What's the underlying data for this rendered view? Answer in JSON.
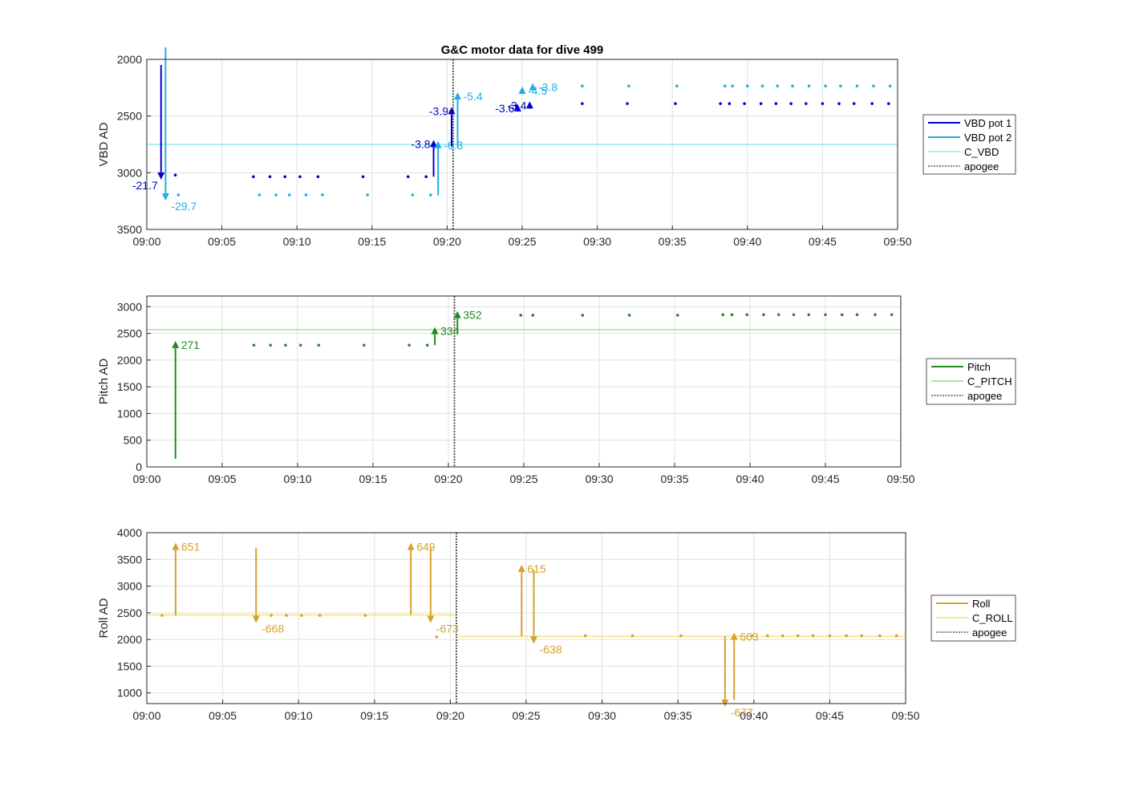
{
  "figure": {
    "title": "G&C motor data for dive 499"
  },
  "colors": {
    "vbd1": "#0000CD",
    "vbd2": "#1EAEE4",
    "c_vbd": "#7FE3E8",
    "pitch": "#228B22",
    "c_pitch": "#7CDE7C",
    "roll": "#D6A22A",
    "c_roll": "#F0E060",
    "apogee": "#555555",
    "grid": "#E0E0E0",
    "axis": "#262626"
  },
  "chart_data": [
    {
      "type": "line",
      "ylabel": "VBD AD",
      "y_reversed": true,
      "ylim": [
        2000,
        3500
      ],
      "yticks": [
        2000,
        2500,
        3000,
        3500
      ],
      "xlim_minutes": [
        0,
        50
      ],
      "x_tick_labels": [
        "09:00",
        "09:05",
        "09:10",
        "09:15",
        "09:20",
        "09:25",
        "09:30",
        "09:35",
        "09:40",
        "09:45",
        "09:50"
      ],
      "grid": true,
      "legend_position": "outside-right",
      "legend": [
        "VBD pot 1",
        "VBD pot 2",
        "C_VBD",
        "apogee"
      ],
      "reference_lines": [
        {
          "name": "C_VBD",
          "y": 2750
        }
      ],
      "apogee_x": 20.4,
      "series": [
        {
          "name": "VBD pot 1",
          "points_x": [
            1.9,
            7.1,
            8.2,
            9.2,
            10.2,
            11.4,
            14.4,
            17.4,
            18.6,
            24.6,
            29.0,
            32.0,
            35.2,
            38.2,
            38.8,
            39.8,
            40.9,
            41.9,
            42.9,
            43.9,
            45.0,
            46.1,
            47.1,
            48.3,
            49.4
          ],
          "points_y": [
            3020,
            3035,
            3035,
            3035,
            3035,
            3035,
            3035,
            3035,
            3035,
            2410,
            2390,
            2390,
            2390,
            2390,
            2390,
            2390,
            2390,
            2390,
            2390,
            2390,
            2390,
            2390,
            2390,
            2390,
            2390
          ]
        },
        {
          "name": "VBD pot 2",
          "points_x": [
            2.1,
            7.5,
            8.6,
            9.5,
            10.6,
            11.7,
            14.7,
            17.7,
            18.9,
            29.0,
            32.1,
            35.3,
            38.5,
            39.0,
            40.0,
            41.0,
            42.0,
            43.0,
            44.1,
            45.2,
            46.2,
            47.3,
            48.4,
            49.5
          ],
          "points_y": [
            3195,
            3195,
            3195,
            3195,
            3195,
            3195,
            3195,
            3195,
            3195,
            2235,
            2235,
            2235,
            2235,
            2235,
            2235,
            2235,
            2235,
            2235,
            2235,
            2235,
            2235,
            2235,
            2235,
            2235
          ]
        }
      ],
      "arrows": [
        {
          "series": "VBD pot 1",
          "x": 0.95,
          "y0": 2050,
          "y1": 3060,
          "label": "-21.7",
          "label_side": "left"
        },
        {
          "series": "VBD pot 2",
          "x": 1.25,
          "y0": 1880,
          "y1": 3245,
          "label": "-29.7",
          "label_side": "right"
        },
        {
          "series": "VBD pot 1",
          "x": 19.1,
          "y0": 3035,
          "y1": 2710,
          "label": "-3.8",
          "label_side": "left"
        },
        {
          "series": "VBD pot 2",
          "x": 19.4,
          "y0": 3200,
          "y1": 2720,
          "label": "-6.3",
          "label_side": "right"
        },
        {
          "series": "VBD pot 1",
          "x": 20.3,
          "y0": 2770,
          "y1": 2420,
          "label": "-3.9",
          "label_side": "left"
        },
        {
          "series": "VBD pot 2",
          "x": 20.7,
          "y0": 2780,
          "y1": 2290,
          "label": "-5.4",
          "label_side": "right"
        },
        {
          "series": "VBD pot 1",
          "x": 24.7,
          "y0": 2450,
          "y1": 2395,
          "label": "-3.6",
          "label_side": "left"
        },
        {
          "series": "VBD pot 1",
          "x": 25.5,
          "y0": 2430,
          "y1": 2370,
          "label": "-3.4",
          "label_side": "left"
        },
        {
          "series": "VBD pot 2",
          "x": 25.0,
          "y0": 2300,
          "y1": 2240,
          "label": "-4.5",
          "label_side": "right"
        },
        {
          "series": "VBD pot 2",
          "x": 25.7,
          "y0": 2260,
          "y1": 2210,
          "label": "-3.8",
          "label_side": "right"
        }
      ]
    },
    {
      "type": "line",
      "ylabel": "Pitch AD",
      "y_reversed": false,
      "ylim": [
        0,
        3200
      ],
      "yticks": [
        0,
        500,
        1000,
        1500,
        2000,
        2500,
        3000
      ],
      "xlim_minutes": [
        0,
        50
      ],
      "x_tick_labels": [
        "09:00",
        "09:05",
        "09:10",
        "09:15",
        "09:20",
        "09:25",
        "09:30",
        "09:35",
        "09:40",
        "09:45",
        "09:50"
      ],
      "grid": true,
      "legend_position": "outside-right",
      "legend": [
        "Pitch",
        "C_PITCH",
        "apogee"
      ],
      "reference_lines": [
        {
          "name": "C_PITCH",
          "y": 2570
        }
      ],
      "apogee_x": 20.4,
      "series": [
        {
          "name": "Pitch",
          "points_x": [
            7.1,
            8.2,
            9.2,
            10.2,
            11.4,
            14.4,
            17.4,
            18.6,
            24.8,
            25.6,
            28.9,
            32.0,
            35.2,
            38.2,
            38.8,
            39.8,
            40.9,
            41.9,
            42.9,
            43.9,
            45.0,
            46.1,
            47.1,
            48.3,
            49.4
          ],
          "points_y": [
            2280,
            2280,
            2280,
            2280,
            2280,
            2280,
            2280,
            2280,
            2840,
            2840,
            2840,
            2840,
            2840,
            2850,
            2850,
            2850,
            2850,
            2850,
            2850,
            2850,
            2850,
            2850,
            2850,
            2850,
            2850
          ]
        }
      ],
      "arrows": [
        {
          "series": "Pitch",
          "x": 1.9,
          "y0": 150,
          "y1": 2360,
          "label": "271",
          "label_side": "right"
        },
        {
          "series": "Pitch",
          "x": 19.1,
          "y0": 2280,
          "y1": 2620,
          "label": "334",
          "label_side": "right"
        },
        {
          "series": "Pitch",
          "x": 20.6,
          "y0": 2510,
          "y1": 2920,
          "label": "352",
          "label_side": "right"
        }
      ]
    },
    {
      "type": "line",
      "ylabel": "Roll AD",
      "y_reversed": false,
      "ylim": [
        800,
        4000
      ],
      "yticks": [
        1000,
        1500,
        2000,
        2500,
        3000,
        3500,
        4000
      ],
      "xlim_minutes": [
        0,
        50
      ],
      "x_tick_labels": [
        "09:00",
        "09:05",
        "09:10",
        "09:15",
        "09:20",
        "09:25",
        "09:30",
        "09:35",
        "09:40",
        "09:45",
        "09:50"
      ],
      "grid": true,
      "legend_position": "outside-right",
      "legend": [
        "Roll",
        "C_ROLL",
        "apogee"
      ],
      "reference_lines": [
        {
          "name": "C_ROLL",
          "x0": 0,
          "x1": 20.4,
          "y": 2460
        },
        {
          "name": "C_ROLL",
          "x0": 20.4,
          "x1": 50,
          "y": 2060
        }
      ],
      "apogee_x": 20.4,
      "series": [
        {
          "name": "Roll",
          "points_x": [
            1.0,
            8.2,
            9.2,
            10.2,
            11.4,
            14.4,
            19.1,
            28.9,
            32.0,
            35.2,
            39.9,
            40.9,
            41.9,
            42.9,
            43.9,
            45.0,
            46.1,
            47.1,
            48.3,
            49.4
          ],
          "points_y": [
            2450,
            2450,
            2450,
            2450,
            2450,
            2450,
            2050,
            2070,
            2070,
            2070,
            2070,
            2070,
            2070,
            2070,
            2070,
            2070,
            2070,
            2070,
            2070,
            2070
          ]
        }
      ],
      "arrows": [
        {
          "series": "Roll",
          "x": 1.9,
          "y0": 2450,
          "y1": 3810,
          "label": "651",
          "label_side": "right"
        },
        {
          "series": "Roll",
          "x": 7.2,
          "y0": 3720,
          "y1": 2310,
          "label": "-668",
          "label_side": "right"
        },
        {
          "series": "Roll",
          "x": 17.4,
          "y0": 2460,
          "y1": 3810,
          "label": "649",
          "label_side": "right"
        },
        {
          "series": "Roll",
          "x": 18.7,
          "y0": 3720,
          "y1": 2310,
          "label": "-673",
          "label_side": "right"
        },
        {
          "series": "Roll",
          "x": 24.7,
          "y0": 2060,
          "y1": 3400,
          "label": "615",
          "label_side": "right"
        },
        {
          "series": "Roll",
          "x": 25.5,
          "y0": 3300,
          "y1": 1920,
          "label": "-638",
          "label_side": "right"
        },
        {
          "series": "Roll",
          "x": 38.1,
          "y0": 2060,
          "y1": 740,
          "label": "-677",
          "label_side": "right"
        },
        {
          "series": "Roll",
          "x": 38.7,
          "y0": 870,
          "y1": 2130,
          "label": "663",
          "label_side": "right"
        }
      ]
    }
  ]
}
